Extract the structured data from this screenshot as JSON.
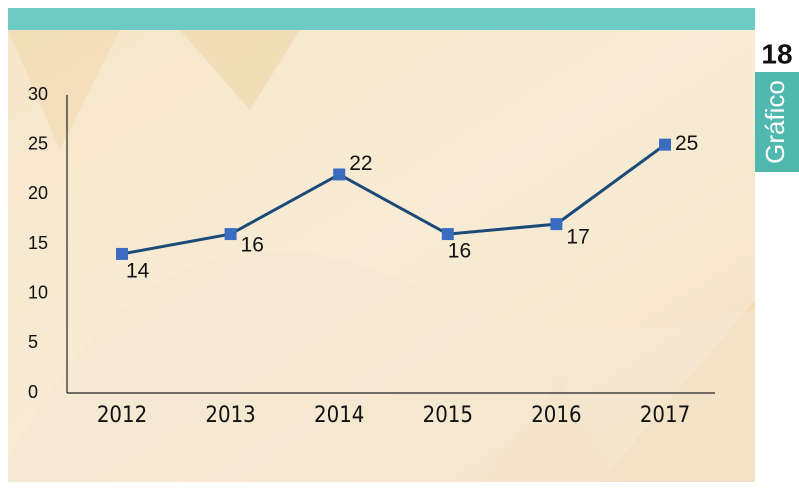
{
  "chart_data": {
    "type": "line",
    "categories": [
      "2012",
      "2013",
      "2014",
      "2015",
      "2016",
      "2017"
    ],
    "values": [
      14,
      16,
      22,
      16,
      17,
      25
    ],
    "color": "#1c4a78",
    "marker_color": "#3b6cc0",
    "ylim": [
      0,
      30
    ],
    "yticks": [
      0,
      5,
      10,
      15,
      20,
      25,
      30
    ],
    "grid": false
  },
  "badge": {
    "number": "18",
    "label": "Gráfico"
  }
}
